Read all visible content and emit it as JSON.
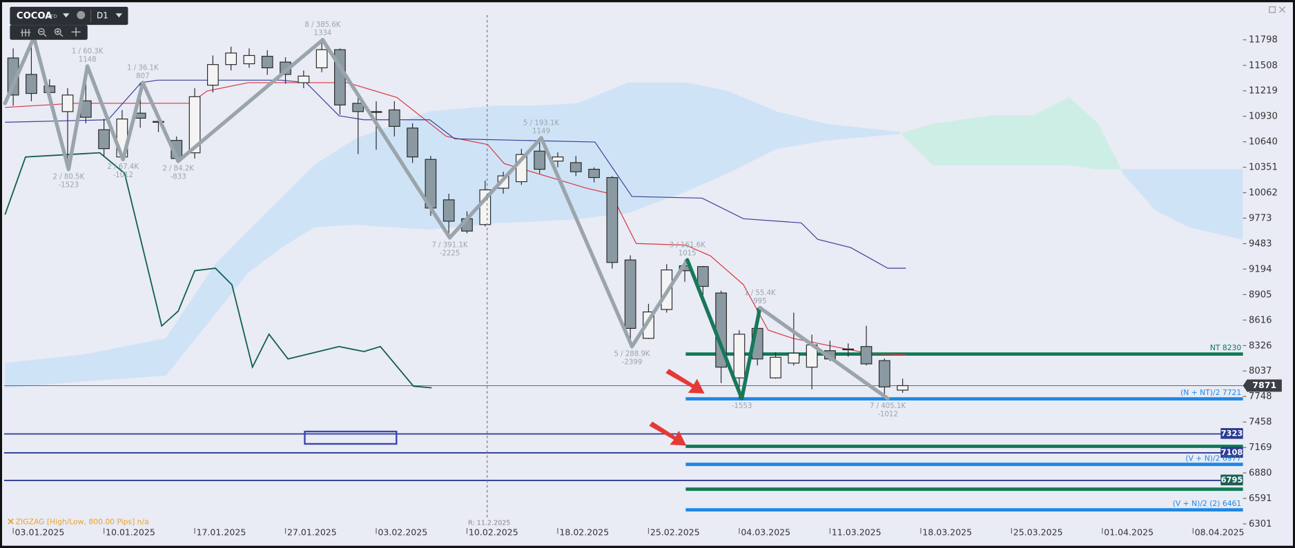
{
  "toolbar": {
    "symbol": "COCOA",
    "badge": "CFD",
    "timeframe": "D1"
  },
  "chart_data": {
    "type": "candlestick",
    "xlim": [
      -0.5,
      67.75
    ],
    "ylim": [
      6067,
      12201
    ],
    "yticks": [
      11798,
      11508,
      11219,
      10930,
      10640,
      10351,
      10062,
      9773,
      9483,
      9194,
      8905,
      8616,
      8326,
      8037,
      7748,
      7458,
      7169,
      6880,
      6591,
      6301
    ],
    "xticks": [
      {
        "value": 0,
        "label": "03.01.2025"
      },
      {
        "value": 5,
        "label": "10.01.2025"
      },
      {
        "value": 10,
        "label": "17.01.2025"
      },
      {
        "value": 15,
        "label": "27.01.2025"
      },
      {
        "value": 20,
        "label": "03.02.2025"
      },
      {
        "value": 25,
        "label": "10.02.2025"
      },
      {
        "value": 30,
        "label": "18.02.2025"
      },
      {
        "value": 35,
        "label": "25.02.2025"
      },
      {
        "value": 40,
        "label": "04.03.2025"
      },
      {
        "value": 45,
        "label": "11.03.2025"
      },
      {
        "value": 50,
        "label": "18.03.2025"
      },
      {
        "value": 55,
        "label": "25.03.2025"
      },
      {
        "value": 60,
        "label": "01.04.2025"
      },
      {
        "value": 65,
        "label": "08.04.2025"
      }
    ],
    "candles": {
      "up_color": "#f4f4f4",
      "down_color": "#8b9aa2",
      "open": [
        11592,
        11405,
        11274,
        10983,
        11105,
        10777,
        10468,
        10965,
        10871,
        10656,
        10515,
        11283,
        11517,
        11526,
        11611,
        11545,
        11311,
        11480,
        11686,
        11077,
        10983,
        11002,
        10796,
        10440,
        9981,
        9766,
        9700,
        10113,
        10187,
        10534,
        10421,
        10403,
        10328,
        10234,
        9298,
        8408,
        8736,
        9232,
        9223,
        8923,
        7959,
        8521,
        7959,
        8127,
        8081,
        8268,
        8287,
        8315,
        8155,
        7820
      ],
      "high": [
        11700,
        11826,
        11350,
        11250,
        11498,
        10900,
        11000,
        11311,
        10950,
        10700,
        11250,
        11620,
        11720,
        11700,
        11680,
        11600,
        11450,
        11798,
        11700,
        11200,
        11100,
        11100,
        10850,
        10480,
        10050,
        9850,
        10200,
        10300,
        10560,
        10684,
        10520,
        10480,
        10350,
        10250,
        9350,
        8800,
        9250,
        9298,
        9230,
        8950,
        8500,
        8755,
        8250,
        8700,
        8450,
        8380,
        8350,
        8550,
        8180,
        7950
      ],
      "low": [
        11050,
        11100,
        11120,
        10330,
        10850,
        10480,
        10440,
        10800,
        10750,
        10420,
        10450,
        11200,
        11450,
        11480,
        11400,
        11300,
        11250,
        11430,
        10950,
        10500,
        10550,
        10700,
        10400,
        9800,
        9551,
        9600,
        9680,
        10050,
        10150,
        10280,
        10350,
        10250,
        10180,
        9200,
        8315,
        8400,
        8700,
        9050,
        8900,
        7900,
        7725,
        8100,
        7950,
        8100,
        7830,
        8150,
        8200,
        8100,
        7725,
        7790
      ],
      "close": [
        11171,
        11189,
        11199,
        11171,
        10918,
        10562,
        10899,
        10908,
        10862,
        10450,
        11152,
        11517,
        11648,
        11620,
        11480,
        11405,
        11386,
        11686,
        11058,
        10983,
        10974,
        10815,
        10468,
        9888,
        9738,
        9626,
        10094,
        10253,
        10496,
        10328,
        10468,
        10300,
        10234,
        9270,
        8521,
        8708,
        9185,
        9176,
        8998,
        8081,
        8455,
        8174,
        8193,
        8240,
        8333,
        8174,
        8278,
        8118,
        7856,
        7871
      ]
    },
    "cloud": {
      "bull_color": "#cdeee4",
      "bear_color": "#cfe3f6",
      "x": [
        -0.45,
        3.86,
        8.41,
        11.14,
        12.95,
        14.77,
        16.59,
        18.86,
        22.95,
        26.59,
        28.86,
        31.14,
        33.86,
        37.05,
        39.32,
        42.05,
        44.77,
        48.86,
        50.68,
        53.86,
        56.14,
        58.18,
        59.77,
        61.14,
        62.95,
        64.77,
        67.73
      ],
      "span_a": [
        7846,
        7921,
        7987,
        8689,
        9157,
        9438,
        9672,
        9700,
        9644,
        9719,
        9738,
        9766,
        9832,
        10075,
        10281,
        10562,
        10656,
        10731,
        10843,
        10936,
        10936,
        11143,
        10843,
        10281,
        9860,
        9672,
        9532
      ],
      "span_b": [
        8127,
        8221,
        8408,
        9251,
        9626,
        10000,
        10375,
        10674,
        10983,
        11049,
        11049,
        11077,
        11311,
        11311,
        11217,
        10983,
        10843,
        10749,
        10375,
        10375,
        10375,
        10375,
        10328,
        10328,
        10328,
        10328,
        10328
      ]
    },
    "lines": [
      {
        "color": "#d9363e",
        "width": 1,
        "x": [
          -0.45,
          3.41,
          9.77,
          10.68,
          12.95,
          18.41,
          21.14,
          23.86,
          26.14,
          27.05,
          31.59,
          32.95,
          34.32,
          37.05,
          38.41,
          40.23,
          41.59,
          42.95,
          47.05,
          49.18
        ],
        "values": [
          11030,
          11077,
          11077,
          11217,
          11311,
          11311,
          11143,
          10702,
          10609,
          10393,
          10113,
          10047,
          9485,
          9466,
          9345,
          9017,
          8502,
          8408,
          8240,
          8221
        ]
      },
      {
        "color": "#3a3f9a",
        "width": 1,
        "x": [
          -0.45,
          5.23,
          7.05,
          7.95,
          14.77,
          16.14,
          17.95,
          19.32,
          22.95,
          24.32,
          32.05,
          34.09,
          37.95,
          40.23,
          43.41,
          44.32,
          46.14,
          48.18,
          49.18
        ],
        "values": [
          10862,
          10890,
          11311,
          11339,
          11339,
          11311,
          10936,
          10890,
          10890,
          10674,
          10637,
          10019,
          10000,
          9766,
          9719,
          9532,
          9438,
          9204,
          9204
        ]
      },
      {
        "color": "#0f5e4a",
        "width": 1.5,
        "x": [
          -0.45,
          0.68,
          4.77,
          6.14,
          8.18,
          9.09,
          10.0,
          11.14,
          12.05,
          13.18,
          14.09,
          15.14,
          17.95,
          19.32,
          20.23,
          22.05,
          23.05
        ],
        "values": [
          9813,
          10468,
          10515,
          10281,
          8549,
          8717,
          9176,
          9204,
          9017,
          8081,
          8455,
          8174,
          8315,
          8258,
          8315,
          7865,
          7846
        ]
      }
    ],
    "zigzag": {
      "width": 4.5,
      "label_color": "#9aa5ab",
      "segment_colors": [
        "#9aa5ab",
        "#9aa5ab",
        "#9aa5ab",
        "#9aa5ab",
        "#9aa5ab",
        "#9aa5ab",
        "#9aa5ab",
        "#9aa5ab",
        "#9aa5ab",
        "#9aa5ab",
        "#9aa5ab",
        "#17785a",
        "#17785a",
        "#9aa5ab"
      ],
      "x": [
        -0.45,
        1.14,
        3.05,
        4.09,
        6.05,
        7.14,
        9.09,
        17.05,
        24.05,
        29.09,
        34.09,
        37.14,
        40.14,
        41.14,
        48.18
      ],
      "values": [
        11077,
        11826,
        10328,
        11498,
        10440,
        11311,
        10420,
        11798,
        9551,
        10684,
        8315,
        9298,
        7725,
        8755,
        7725
      ],
      "labels": [
        null,
        null,
        [
          "2 / 80.5K",
          "-1523"
        ],
        [
          "1 / 60.3K",
          "1148"
        ],
        [
          "2 / 67.4K",
          "-1012"
        ],
        [
          "1 / 36.1K",
          "807"
        ],
        [
          "2 / 84.2K",
          "-833"
        ],
        [
          "8 / 385.6K",
          "1334"
        ],
        [
          "7 / 391.1K",
          "-2225"
        ],
        [
          "5 / 193.1K",
          "1149"
        ],
        [
          "5 / 288.9K",
          "-2399"
        ],
        [
          "3 / 161.6K",
          "1015"
        ],
        [
          "-1553"
        ],
        [
          "1 / 55.4K",
          "995"
        ],
        [
          "7 / 405.1K",
          "-1012"
        ]
      ]
    },
    "levels": [
      {
        "value": 8230,
        "color": "#0f7a55",
        "width": 4,
        "start": 37.05,
        "label": "NT 8230"
      },
      {
        "value": 7721,
        "color": "#1e88e5",
        "width": 4,
        "start": 37.05,
        "label": "(N + NT)/2 7721"
      },
      {
        "value": 7323,
        "color": "#2b3990",
        "width": 1.5,
        "boxed": true
      },
      {
        "value": 7182,
        "color": "#0f7a55",
        "width": 4,
        "start": 37.05
      },
      {
        "value": 7108,
        "color": "#2b3990",
        "width": 1.5,
        "boxed": true
      },
      {
        "value": 6977,
        "color": "#1e88e5",
        "width": 4,
        "start": 37.05,
        "label": "(V + N)/2 6977"
      },
      {
        "value": 6795,
        "color": "#2b3990",
        "width": 1.5,
        "boxed": true,
        "box_color": "#1d5e55"
      },
      {
        "value": 6695,
        "color": "#0f7a55",
        "width": 4,
        "start": 37.05
      },
      {
        "value": 6461,
        "color": "#1e88e5",
        "width": 4,
        "start": 37.05,
        "label": "(V + N)/2 (2) 6461"
      }
    ],
    "price": {
      "value": 7871,
      "color": "#555555",
      "box_color": "#3a3f45"
    },
    "marker": {
      "x": 26.11,
      "label": "R: 11.2.2025"
    },
    "indicator_label": "ZIGZAG [High/Low, 800.00 Pips] n/a"
  }
}
